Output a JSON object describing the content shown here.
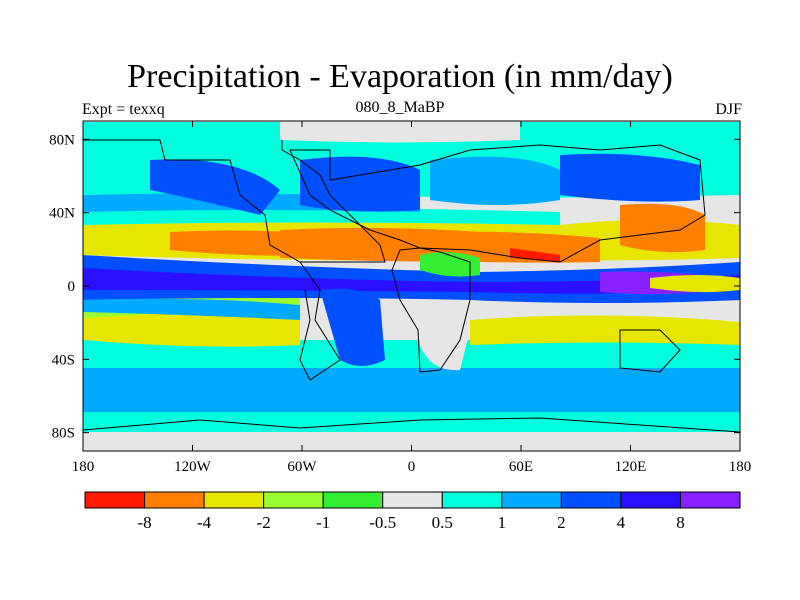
{
  "title": "Precipitation - Evaporation (in mm/day)",
  "left_label": "Expt = texxq",
  "center_label": "080_8_MaBP",
  "right_label": "DJF",
  "map": {
    "projection": "cylindrical-equidistant",
    "lon_range": [
      -180,
      180
    ],
    "lat_range": [
      -90,
      90
    ],
    "lon_ticks": [
      {
        "value": -180,
        "label": "180"
      },
      {
        "value": -120,
        "label": "120W"
      },
      {
        "value": -60,
        "label": "60W"
      },
      {
        "value": 0,
        "label": "0"
      },
      {
        "value": 60,
        "label": "60E"
      },
      {
        "value": 120,
        "label": "120E"
      },
      {
        "value": 180,
        "label": "180"
      }
    ],
    "lat_ticks": [
      {
        "value": 80,
        "label": "80N"
      },
      {
        "value": 40,
        "label": "40N"
      },
      {
        "value": 0,
        "label": "0"
      },
      {
        "value": -40,
        "label": "40S"
      },
      {
        "value": -80,
        "label": "80S"
      }
    ]
  },
  "colorbar": {
    "colors": [
      "#ff1a00",
      "#ff8000",
      "#e6e600",
      "#99ff33",
      "#33ee33",
      "#e6e6e6",
      "#00ffdd",
      "#00aaff",
      "#0050ff",
      "#2a10ff",
      "#8a20ff"
    ],
    "labels": [
      "-8",
      "-4",
      "-2",
      "-1",
      "-0.5",
      "0.5",
      "1",
      "2",
      "4",
      "8"
    ]
  }
}
